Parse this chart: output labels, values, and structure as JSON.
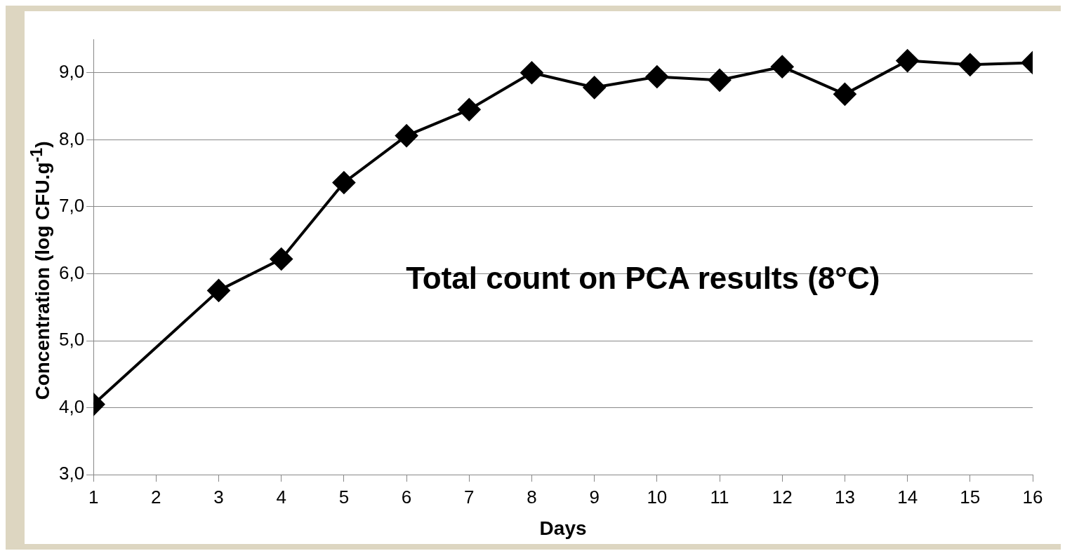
{
  "chart_data": {
    "type": "line",
    "title": "Total count on PCA results (8°C)",
    "xlabel": "Days",
    "ylabel": "Concentration (log CFU.g$^{-1}$)",
    "x": [
      1,
      3,
      4,
      5,
      6,
      7,
      8,
      9,
      10,
      11,
      12,
      13,
      14,
      15,
      16
    ],
    "series": [
      {
        "color": "#000000",
        "values": [
          4.05,
          5.75,
          6.22,
          7.36,
          8.06,
          8.45,
          9.0,
          8.78,
          8.94,
          8.89,
          9.09,
          8.68,
          9.18,
          9.12,
          9.15
        ]
      }
    ],
    "xlim": [
      1,
      16
    ],
    "xticks": [
      1,
      2,
      3,
      4,
      5,
      6,
      7,
      8,
      9,
      10,
      11,
      12,
      13,
      14,
      15,
      16
    ],
    "ylim": [
      3,
      9.5
    ],
    "yticks": [
      {
        "value": 3,
        "label": "3,0"
      },
      {
        "value": 4,
        "label": "4,0"
      },
      {
        "value": 5,
        "label": "5,0"
      },
      {
        "value": 6,
        "label": "6,0"
      },
      {
        "value": 7,
        "label": "7,0"
      },
      {
        "value": 8,
        "label": "8,0"
      },
      {
        "value": 9,
        "label": "9,0"
      }
    ],
    "grid": "y",
    "marker": "diamond",
    "legend": false
  }
}
